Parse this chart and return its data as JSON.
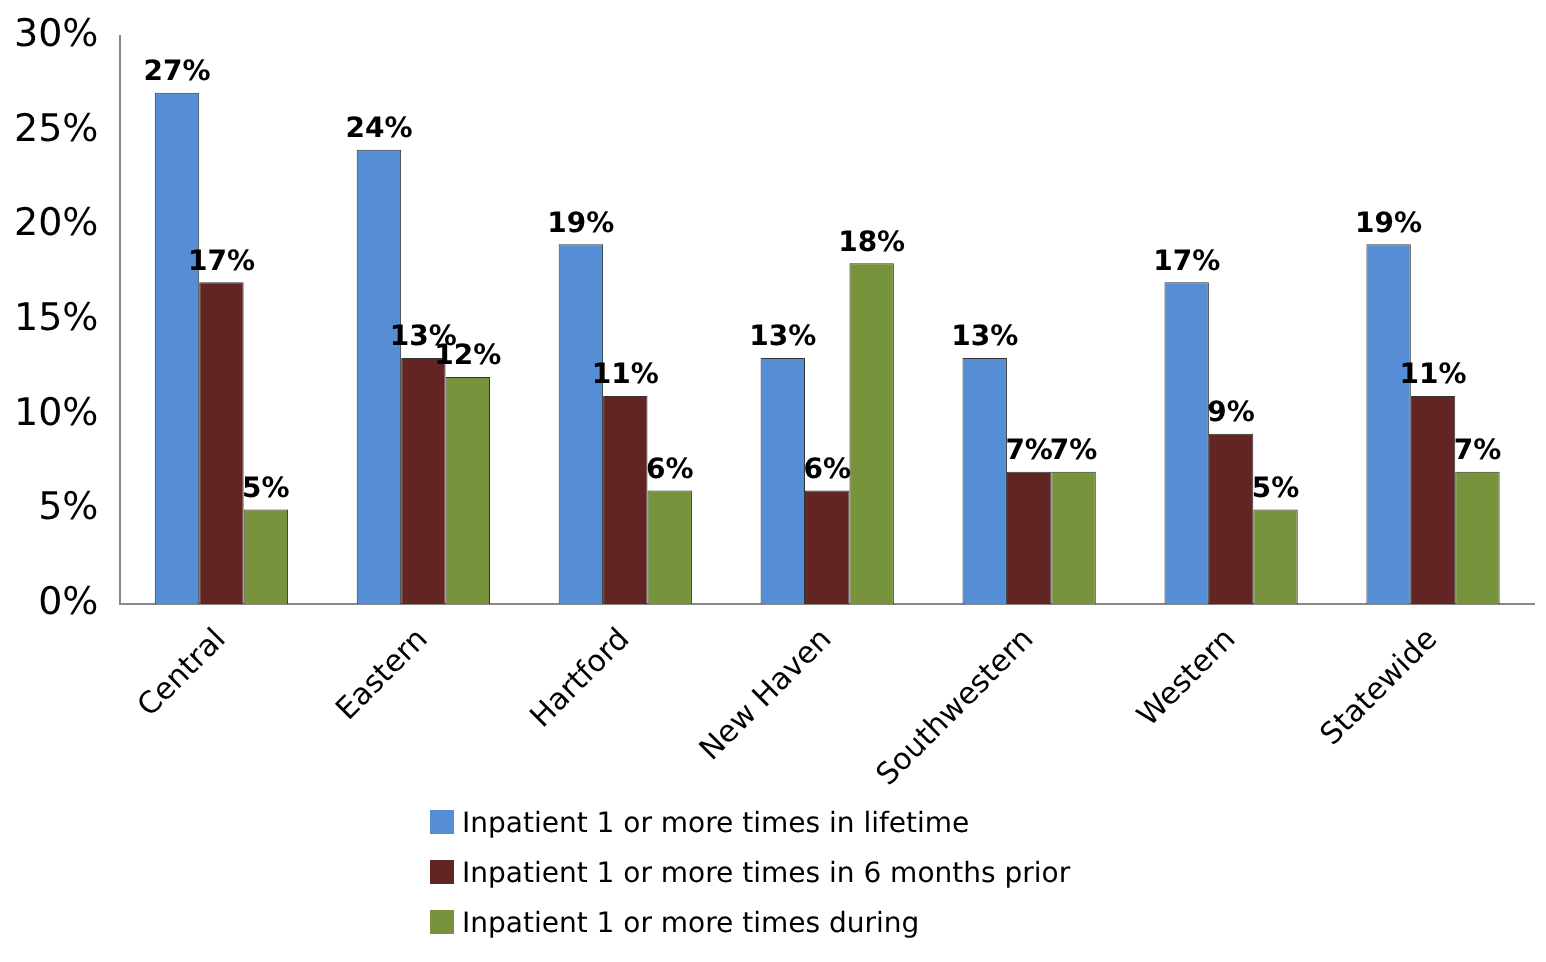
{
  "chart_data": {
    "type": "bar",
    "categories": [
      "Central",
      "Eastern",
      "Hartford",
      "New Haven",
      "Southwestern",
      "Western",
      "Statewide"
    ],
    "series": [
      {
        "name": "Inpatient 1 or more times in lifetime",
        "color": "#558ed5",
        "values": [
          27,
          24,
          19,
          13,
          13,
          17,
          19
        ],
        "value_labels": [
          "27%",
          "24%",
          "19%",
          "13%",
          "13%",
          "17%",
          "19%"
        ]
      },
      {
        "name": "Inpatient 1 or more times in 6 months prior",
        "color": "#632523",
        "values": [
          17,
          13,
          11,
          6,
          7,
          9,
          11
        ],
        "value_labels": [
          "17%",
          "13%",
          "11%",
          "6%",
          "7%",
          "9%",
          "11%"
        ]
      },
      {
        "name": "Inpatient 1 or more times during",
        "color": "#77933c",
        "values": [
          5,
          12,
          6,
          18,
          7,
          5,
          7
        ],
        "value_labels": [
          "5%",
          "12%",
          "6%",
          "18%",
          "7%",
          "5%",
          "7%"
        ]
      }
    ],
    "ylim": [
      0,
      30
    ],
    "yticks": [
      {
        "value": 0,
        "label": "0%"
      },
      {
        "value": 5,
        "label": "5%"
      },
      {
        "value": 10,
        "label": "10%"
      },
      {
        "value": 15,
        "label": "15%"
      },
      {
        "value": 20,
        "label": "20%"
      },
      {
        "value": 25,
        "label": "25%"
      },
      {
        "value": 30,
        "label": "30%"
      }
    ],
    "grid": false,
    "legend": "bottom"
  }
}
